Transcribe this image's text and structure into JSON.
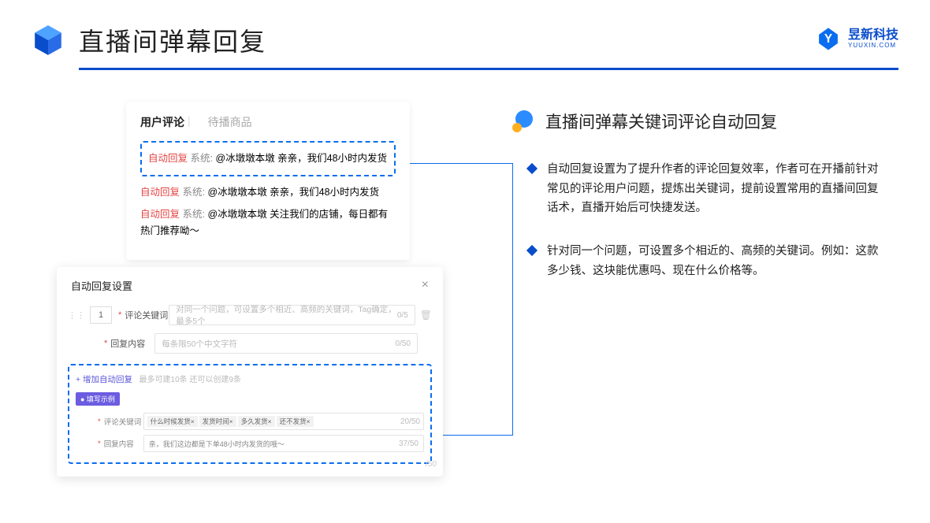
{
  "header": {
    "title": "直播间弹幕回复"
  },
  "brand": {
    "cn": "昱新科技",
    "en": "YUUXIN.COM"
  },
  "tabs": {
    "active": "用户评论",
    "inactive": "待播商品"
  },
  "comments": {
    "c1": {
      "tag": "自动回复",
      "sys": "系统:",
      "text": "@冰墩墩本墩 亲亲，我们48小时内发货"
    },
    "c2": {
      "tag": "自动回复",
      "sys": "系统:",
      "text": "@冰墩墩本墩 亲亲，我们48小时内发货"
    },
    "c3": {
      "tag": "自动回复",
      "sys": "系统:",
      "text": "@冰墩墩本墩 关注我们的店铺，每日都有热门推荐呦～"
    }
  },
  "panel2": {
    "title": "自动回复设置",
    "idx": "1",
    "keyword_label": "评论关键词",
    "keyword_ph": "对同一个问题，可设置多个相近、高频的关键词，Tag确定，最多5个",
    "keyword_count": "0/5",
    "content_label": "回复内容",
    "content_ph": "每条限50个中文字符",
    "content_count": "0/50",
    "add_link": "+ 增加自动回复",
    "add_sub": "最多可建10条 还可以创建9条",
    "example_tag": "● 填写示例",
    "ex_kw_label": "评论关键词",
    "chips": [
      "什么时候发货×",
      "发货时间×",
      "多久发货×",
      "还不发货×"
    ],
    "ex_kw_count": "20/50",
    "ex_ct_label": "回复内容",
    "ex_ct_text": "亲，我们这边都是下单48小时内发货的哦～",
    "ex_ct_count": "37/50",
    "stray": "/50"
  },
  "right": {
    "title": "直播间弹幕关键词评论自动回复",
    "b1": "自动回复设置为了提升作者的评论回复效率，作者可在开播前针对常见的评论用户问题，提炼出关键词，提前设置常用的直播间回复话术，直播开始后可快捷发送。",
    "b2": "针对同一个问题，可设置多个相近的、高频的关键词。例如：这款多少钱、这块能优惠吗、现在什么价格等。"
  }
}
